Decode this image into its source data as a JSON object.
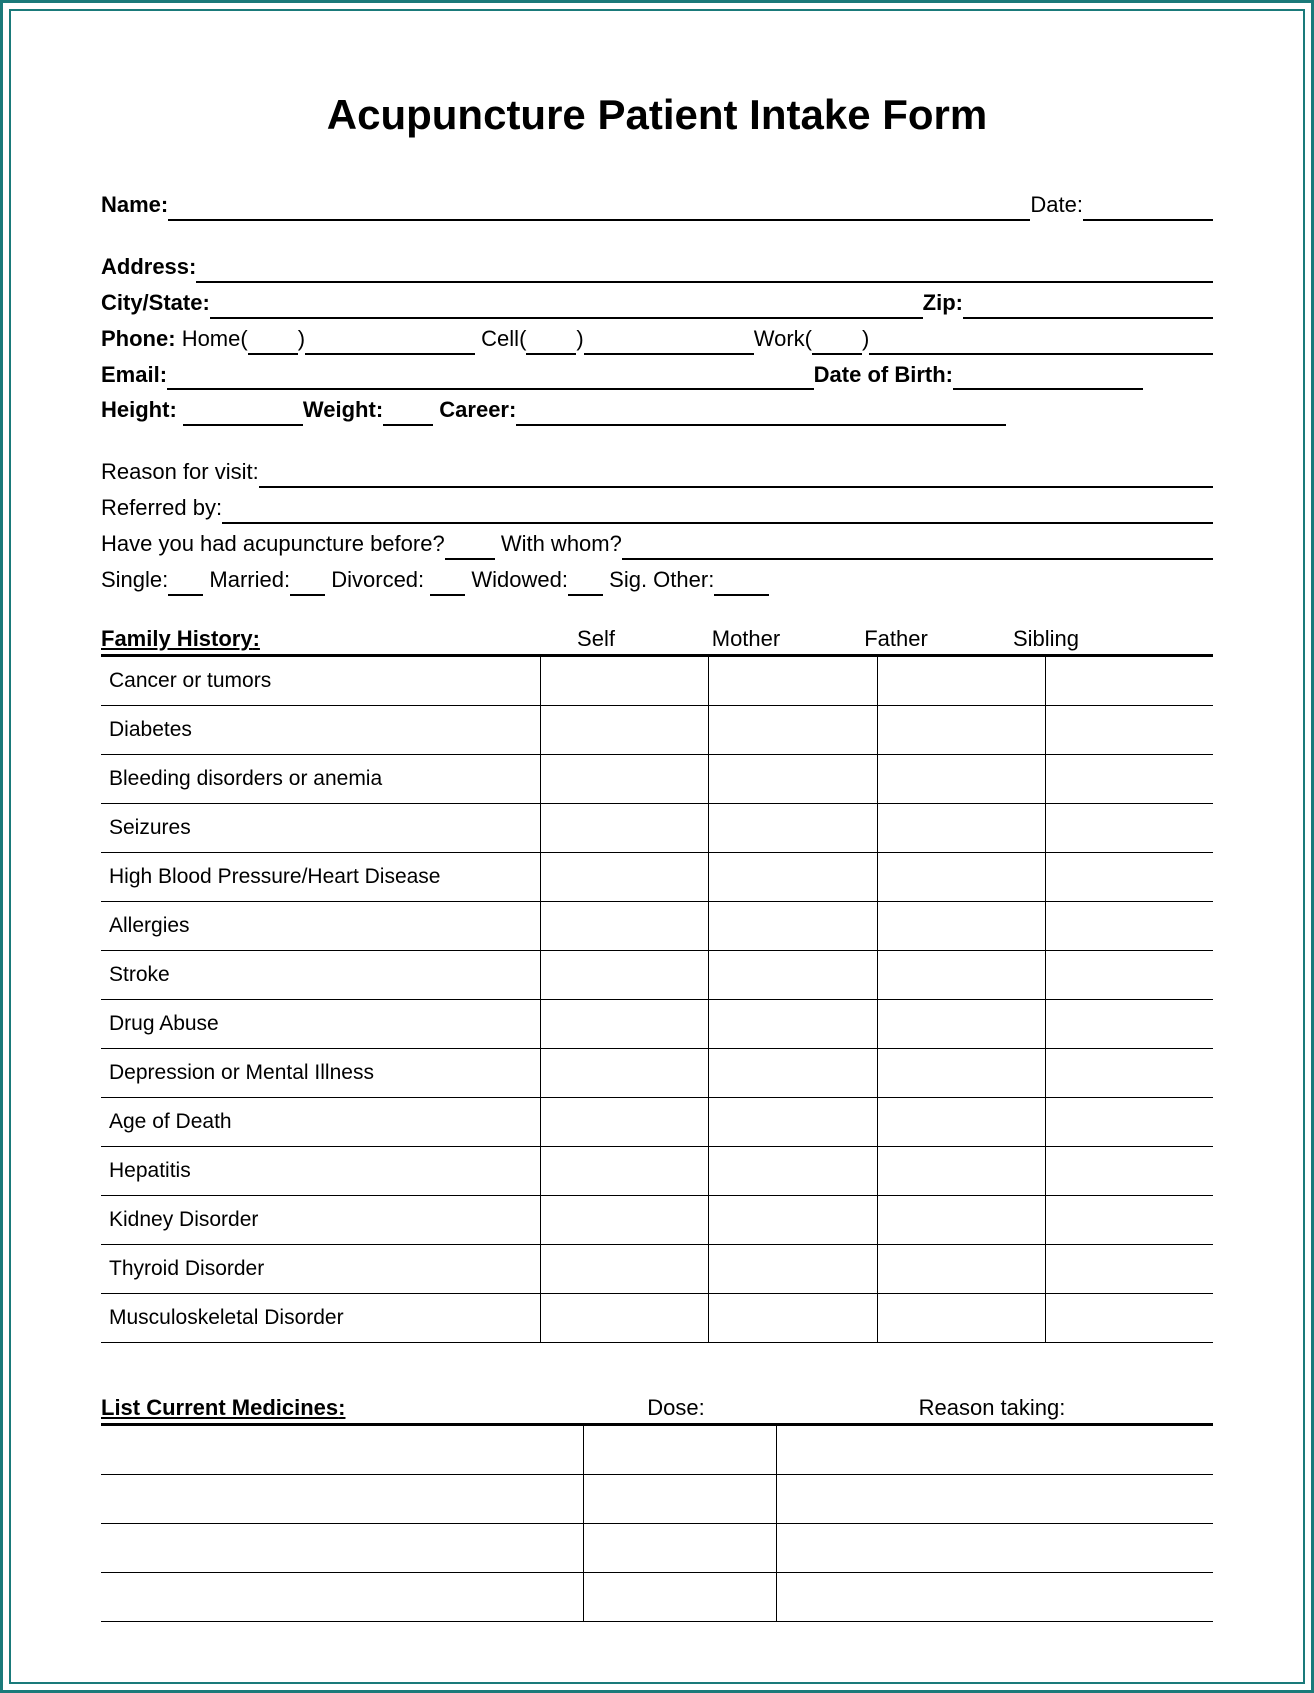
{
  "title": "Acupuncture Patient Intake Form",
  "labels": {
    "name": "Name",
    "date": "Date",
    "address": "Address",
    "city_state": "City/State",
    "zip": "Zip",
    "phone": "Phone",
    "home": "Home",
    "cell": "Cell",
    "work": "Work",
    "email": "Email",
    "dob": "Date of Birth",
    "height": "Height",
    "weight": "Weight",
    "career": "Career",
    "reason": "Reason for visit",
    "referred": "Referred by",
    "had_acu": "Have you had acupuncture before?",
    "with_whom": "With whom?",
    "single": "Single",
    "married": "Married",
    "divorced": "Divorced",
    "widowed": "Widowed",
    "sig_other": "Sig. Other"
  },
  "family_history": {
    "heading": "Family History",
    "columns": [
      "Self",
      "Mother",
      "Father",
      "Sibling"
    ],
    "rows": [
      "Cancer or tumors",
      "Diabetes",
      "Bleeding disorders or anemia",
      "Seizures",
      "High Blood Pressure/Heart Disease",
      "Allergies",
      "Stroke",
      "Drug Abuse",
      "Depression or Mental Illness",
      "Age of Death",
      "Hepatitis",
      "Kidney Disorder",
      "Thyroid Disorder",
      "Musculoskeletal Disorder"
    ]
  },
  "medicines": {
    "heading": "List Current  Medicines",
    "columns": [
      "Dose:",
      "Reason taking:"
    ],
    "row_count": 4
  },
  "style": {
    "border_color": "#1a7a7a",
    "text_color": "#000000",
    "background": "#ffffff",
    "title_fontsize": 42,
    "body_fontsize": 22
  }
}
